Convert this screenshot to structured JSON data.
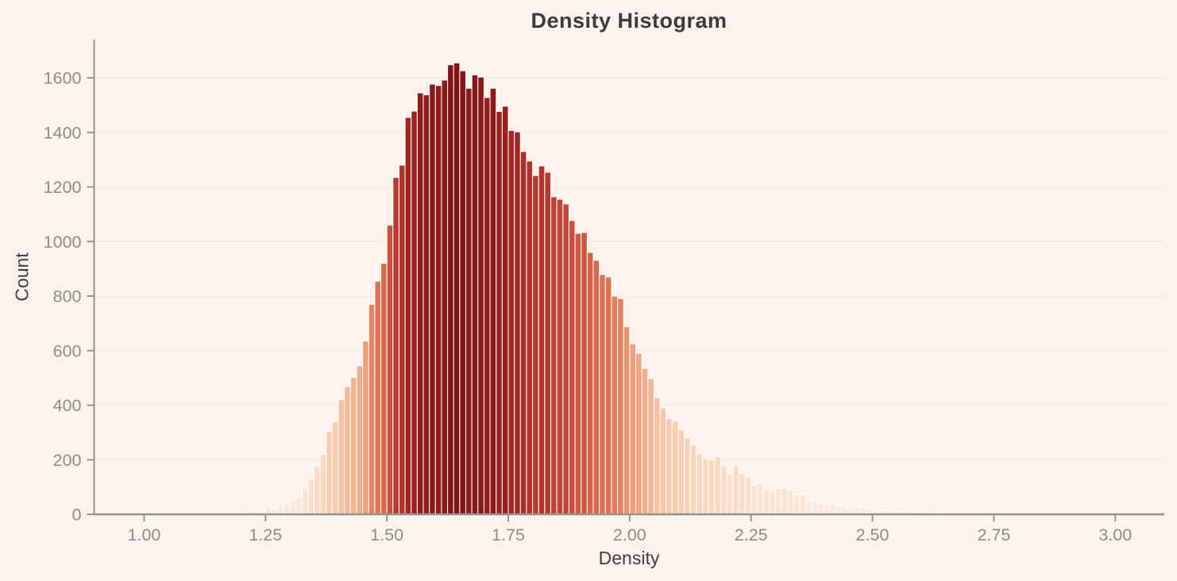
{
  "chart_data": {
    "type": "bar",
    "subtype": "histogram",
    "title": "Density Histogram",
    "xlabel": "Density",
    "ylabel": "Count",
    "legend": "none",
    "grid": "horizontal-only",
    "x_ticks": [
      {
        "value": 1.0,
        "label": "1.00"
      },
      {
        "value": 1.25,
        "label": "1.25"
      },
      {
        "value": 1.5,
        "label": "1.50"
      },
      {
        "value": 1.75,
        "label": "1.75"
      },
      {
        "value": 2.0,
        "label": "2.00"
      },
      {
        "value": 2.25,
        "label": "2.25"
      },
      {
        "value": 2.5,
        "label": "2.50"
      },
      {
        "value": 2.75,
        "label": "2.75"
      },
      {
        "value": 3.0,
        "label": "3.00"
      }
    ],
    "y_ticks": [
      {
        "value": 0,
        "label": "0"
      },
      {
        "value": 200,
        "label": "200"
      },
      {
        "value": 400,
        "label": "400"
      },
      {
        "value": 600,
        "label": "600"
      },
      {
        "value": 800,
        "label": "800"
      },
      {
        "value": 1000,
        "label": "1000"
      },
      {
        "value": 1200,
        "label": "1200"
      },
      {
        "value": 1400,
        "label": "1400"
      },
      {
        "value": 1600,
        "label": "1600"
      }
    ],
    "xlim": [
      0.897,
      3.101
    ],
    "ylim": [
      0,
      1740
    ],
    "bin_start": 1.2125,
    "bin_width": 0.0125,
    "max_count": 1655,
    "counts": [
      12,
      8,
      15,
      26,
      22,
      35,
      44,
      47,
      64,
      95,
      130,
      175,
      220,
      305,
      340,
      420,
      468,
      502,
      545,
      635,
      770,
      855,
      920,
      1060,
      1235,
      1280,
      1455,
      1478,
      1545,
      1538,
      1577,
      1572,
      1592,
      1648,
      1655,
      1626,
      1562,
      1611,
      1603,
      1528,
      1562,
      1477,
      1496,
      1407,
      1402,
      1330,
      1295,
      1242,
      1277,
      1254,
      1164,
      1155,
      1138,
      1077,
      1030,
      1033,
      960,
      931,
      879,
      870,
      800,
      791,
      688,
      625,
      590,
      535,
      498,
      428,
      390,
      352,
      342,
      310,
      280,
      255,
      222,
      205,
      201,
      212,
      176,
      146,
      178,
      150,
      137,
      105,
      113,
      96,
      87,
      95,
      98,
      90,
      72,
      72,
      49,
      47,
      40,
      35,
      38,
      32,
      29,
      23,
      28,
      26,
      22,
      18,
      15,
      14,
      12,
      10,
      12,
      9,
      8,
      10,
      7,
      6,
      5
    ],
    "colors": {
      "background": "#fdf3ec",
      "axis_line": "#96928e",
      "grid_line": "#f8e9e1",
      "tick_label": "#8d8b88",
      "title_text": "#3b3b3b",
      "axis_label_text": "#3f3f3f",
      "bar_gap_stroke": "#ffffff",
      "colormap_by_height": [
        [
          0.0,
          "#fdeee3"
        ],
        [
          0.12,
          "#fbd9c2"
        ],
        [
          0.24,
          "#f8c5a8"
        ],
        [
          0.39,
          "#ec9c77"
        ],
        [
          0.55,
          "#d96c4e"
        ],
        [
          0.66,
          "#c54c3c"
        ],
        [
          0.8,
          "#ac2e29"
        ],
        [
          0.9,
          "#992220"
        ],
        [
          1.0,
          "#7f1315"
        ]
      ]
    }
  }
}
